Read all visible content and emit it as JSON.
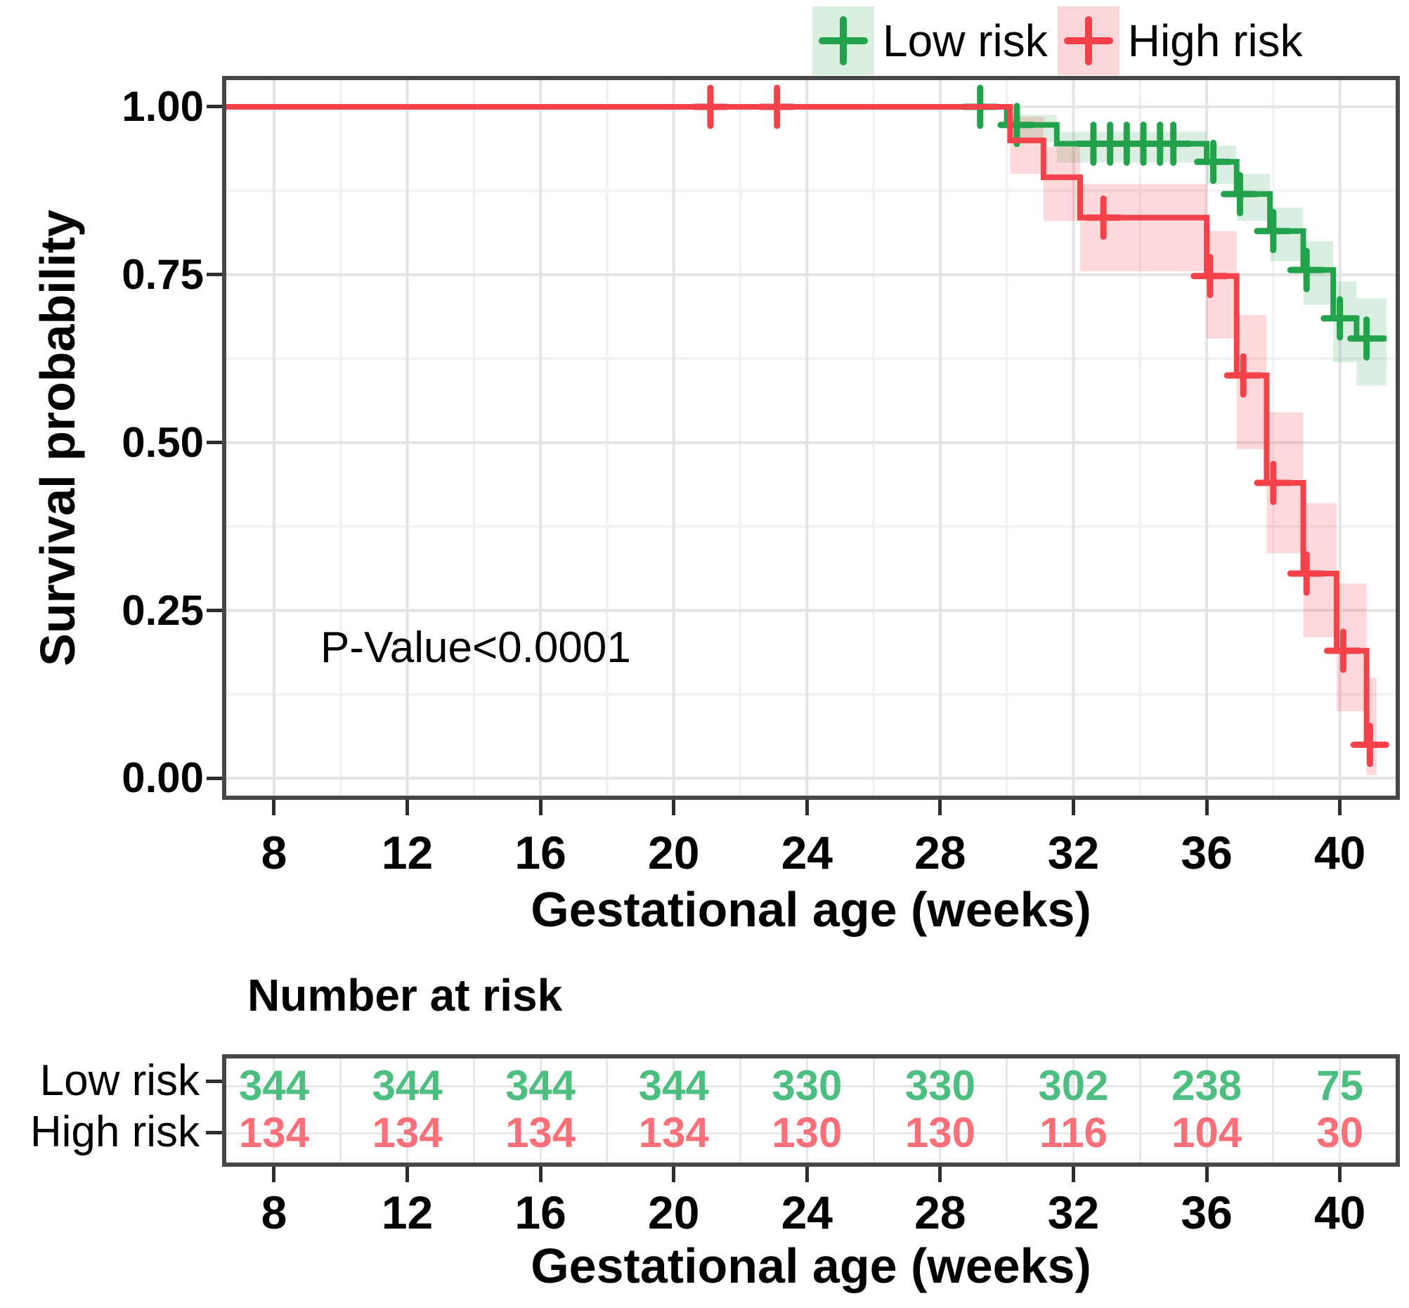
{
  "legend": {
    "items": [
      {
        "label": "Low risk"
      },
      {
        "label": "High risk"
      }
    ]
  },
  "axes": {
    "y": {
      "title": "Survival probability",
      "tick_labels": [
        "1.00",
        "0.75",
        "0.50",
        "0.25",
        "0.00"
      ]
    },
    "x": {
      "title": "Gestational age (weeks)",
      "tick_labels": [
        "8",
        "12",
        "16",
        "20",
        "24",
        "28",
        "32",
        "36",
        "40"
      ]
    }
  },
  "chart_data": {
    "type": "line",
    "subtype": "kaplan-meier-step-curves",
    "title": "",
    "xlabel": "Gestational age (weeks)",
    "ylabel": "Survival probability",
    "xlim": [
      6.44,
      41.8
    ],
    "ylim": [
      -0.032,
      1.046
    ],
    "x_ticks": [
      8,
      12,
      16,
      20,
      24,
      28,
      32,
      36,
      40
    ],
    "x_minor_ticks": [
      10,
      14,
      18,
      22,
      26,
      30,
      34,
      38
    ],
    "y_ticks": [
      1.0,
      0.75,
      0.5,
      0.25,
      0.0
    ],
    "y_minor_ticks": [
      0.875,
      0.625,
      0.375,
      0.125
    ],
    "grid": "major+minor",
    "legend_position": "top-right",
    "annotation": {
      "text": "P-Value<0.0001",
      "x": 9.4,
      "y": 0.19
    },
    "series": [
      {
        "name": "Low risk",
        "color": "#23A24C",
        "ci_fill": "rgba(35,162,76,0.17)",
        "key_fill": "#D9EFDF",
        "steps": [
          [
            6.44,
            1.0
          ],
          [
            30.0,
            0.973
          ],
          [
            31.5,
            0.945
          ],
          [
            36.0,
            0.918
          ],
          [
            36.9,
            0.87
          ],
          [
            37.9,
            0.815
          ],
          [
            38.9,
            0.757
          ],
          [
            39.8,
            0.685
          ],
          [
            40.5,
            0.655
          ]
        ],
        "end_x": 41.4,
        "ci": [
          [
            1.0,
            1.0
          ],
          [
            0.948,
            0.988
          ],
          [
            0.917,
            0.963
          ],
          [
            0.885,
            0.942
          ],
          [
            0.83,
            0.9
          ],
          [
            0.77,
            0.85
          ],
          [
            0.705,
            0.8
          ],
          [
            0.62,
            0.74
          ],
          [
            0.585,
            0.715
          ]
        ],
        "censors": [
          [
            29.2,
            1.0
          ],
          [
            30.3,
            0.973
          ],
          [
            32.6,
            0.945
          ],
          [
            33.1,
            0.945
          ],
          [
            33.6,
            0.945
          ],
          [
            34.1,
            0.945
          ],
          [
            34.6,
            0.945
          ],
          [
            35.0,
            0.945
          ],
          [
            36.2,
            0.918
          ],
          [
            37.0,
            0.87
          ],
          [
            38.0,
            0.815
          ],
          [
            39.0,
            0.757
          ],
          [
            40.0,
            0.685
          ],
          [
            40.8,
            0.655
          ]
        ]
      },
      {
        "name": "High risk",
        "color": "#F5424A",
        "ci_fill": "rgba(245,66,74,0.20)",
        "key_fill": "#FBD6D8",
        "steps": [
          [
            6.44,
            1.0
          ],
          [
            30.1,
            0.95
          ],
          [
            31.1,
            0.895
          ],
          [
            32.2,
            0.835
          ],
          [
            36.0,
            0.748
          ],
          [
            36.9,
            0.6
          ],
          [
            37.8,
            0.44
          ],
          [
            38.9,
            0.305
          ],
          [
            39.9,
            0.19
          ],
          [
            40.8,
            0.05
          ]
        ],
        "end_x": 41.1,
        "ci": [
          [
            1.0,
            1.0
          ],
          [
            0.9,
            0.985
          ],
          [
            0.83,
            0.94
          ],
          [
            0.755,
            0.885
          ],
          [
            0.655,
            0.815
          ],
          [
            0.49,
            0.69
          ],
          [
            0.335,
            0.545
          ],
          [
            0.21,
            0.41
          ],
          [
            0.1,
            0.29
          ],
          [
            0.005,
            0.15
          ]
        ],
        "censors": [
          [
            21.1,
            1.0
          ],
          [
            23.1,
            1.0
          ],
          [
            32.9,
            0.835
          ],
          [
            36.1,
            0.748
          ],
          [
            37.1,
            0.6
          ],
          [
            38.0,
            0.44
          ],
          [
            39.0,
            0.305
          ],
          [
            40.1,
            0.19
          ],
          [
            40.9,
            0.05
          ]
        ]
      }
    ]
  },
  "risk_table": {
    "title": "Number at risk",
    "xlabel": "Gestational age (weeks)",
    "columns": [
      8,
      12,
      16,
      20,
      24,
      28,
      32,
      36,
      40
    ],
    "rows": [
      {
        "label": "Low risk",
        "color": "#4CBE80",
        "values": [
          "344",
          "344",
          "344",
          "344",
          "330",
          "330",
          "302",
          "238",
          "75"
        ]
      },
      {
        "label": "High risk",
        "color": "#FB6F79",
        "values": [
          "134",
          "134",
          "134",
          "134",
          "130",
          "130",
          "116",
          "104",
          "30"
        ]
      }
    ]
  }
}
